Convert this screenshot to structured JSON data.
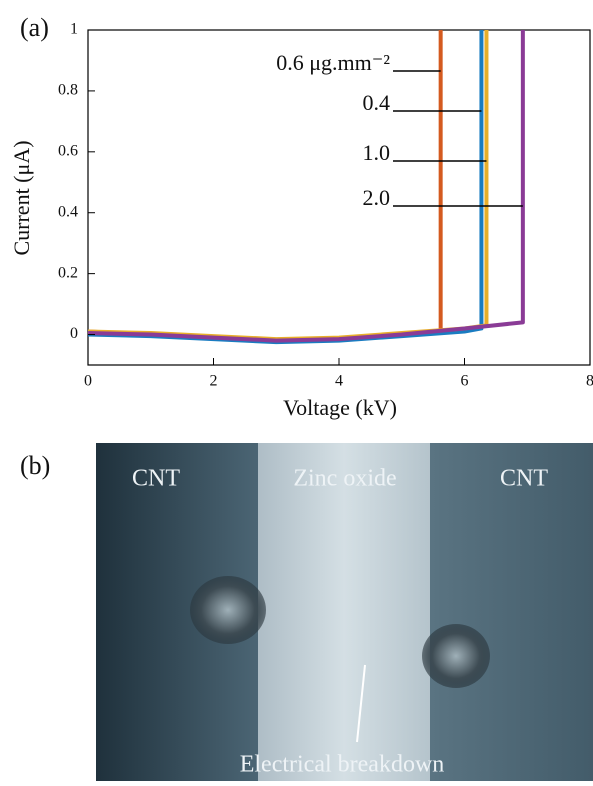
{
  "chart_data": {
    "type": "line",
    "panel_label": "(a)",
    "x_label": "Voltage (kV)",
    "y_label": "Current (μA)",
    "xlim": [
      0,
      8
    ],
    "xticks": [
      0,
      2,
      4,
      6,
      8
    ],
    "ylim": [
      -0.1,
      1
    ],
    "yticks": [
      0,
      0.2,
      0.4,
      0.6,
      0.8,
      1
    ],
    "grid": false,
    "series": [
      {
        "name": "0.6 μg.mm⁻²",
        "color": "#d45a1f",
        "x": [
          0,
          1,
          2,
          3,
          4,
          5,
          5.62,
          5.62
        ],
        "values": [
          0.01,
          0.0,
          -0.01,
          -0.02,
          -0.015,
          0.0,
          0.01,
          1
        ]
      },
      {
        "name": "0.4",
        "color": "#1a7cc1",
        "x": [
          0,
          1,
          2,
          3,
          4,
          5,
          6,
          6.27,
          6.27
        ],
        "values": [
          0.0,
          -0.005,
          -0.015,
          -0.025,
          -0.02,
          -0.005,
          0.01,
          0.02,
          1
        ]
      },
      {
        "name": "1.0",
        "color": "#e8ae2a",
        "x": [
          0,
          1,
          2,
          3,
          4,
          5,
          6,
          6.35,
          6.35
        ],
        "values": [
          0.01,
          0.005,
          -0.005,
          -0.015,
          -0.01,
          0.005,
          0.02,
          0.03,
          1
        ]
      },
      {
        "name": "2.0",
        "color": "#8a3b96",
        "x": [
          0,
          1,
          2,
          3,
          4,
          5,
          6,
          6.93,
          6.93
        ],
        "values": [
          0.005,
          0.0,
          -0.01,
          -0.02,
          -0.015,
          0.0,
          0.02,
          0.04,
          1
        ]
      }
    ]
  },
  "photo": {
    "panel_label": "(b)",
    "labels": [
      "CNT",
      "Zinc oxide",
      "CNT"
    ],
    "annotation": "Electrical breakdown"
  }
}
